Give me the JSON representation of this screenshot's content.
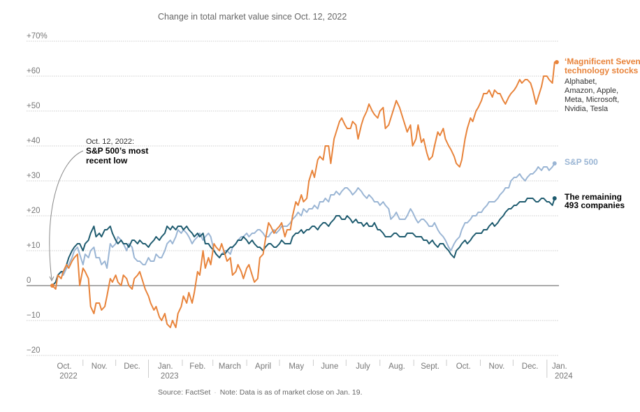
{
  "chart_data": {
    "type": "line",
    "title": "Change in total market value since Oct. 12, 2022",
    "xlabel": "",
    "ylabel": "",
    "ylim": [
      -20,
      70
    ],
    "yticks": [
      {
        "value": 70,
        "label": "+70%"
      },
      {
        "value": 60,
        "label": "+60"
      },
      {
        "value": 50,
        "label": "+50"
      },
      {
        "value": 40,
        "label": "+40"
      },
      {
        "value": 30,
        "label": "+30"
      },
      {
        "value": 20,
        "label": "+20"
      },
      {
        "value": 10,
        "label": "+10"
      },
      {
        "value": 0,
        "label": "0"
      },
      {
        "value": -10,
        "label": "−10"
      },
      {
        "value": -20,
        "label": "−20"
      }
    ],
    "grid": true,
    "x_unit": "days since Oct. 12, 2022",
    "xlim": [
      0,
      464
    ],
    "xticks": [
      {
        "day": 0,
        "label": "Oct.",
        "year": "2022"
      },
      {
        "day": 28,
        "label": "Nov.",
        "year": ""
      },
      {
        "day": 58,
        "label": "Dec.",
        "year": ""
      },
      {
        "day": 88,
        "label": "Jan.",
        "year": "2023"
      },
      {
        "day": 119,
        "label": "Feb.",
        "year": ""
      },
      {
        "day": 147,
        "label": "March",
        "year": ""
      },
      {
        "day": 178,
        "label": "April",
        "year": ""
      },
      {
        "day": 208,
        "label": "May",
        "year": ""
      },
      {
        "day": 239,
        "label": "June",
        "year": ""
      },
      {
        "day": 269,
        "label": "July",
        "year": ""
      },
      {
        "day": 300,
        "label": "Aug.",
        "year": ""
      },
      {
        "day": 331,
        "label": "Sept.",
        "year": ""
      },
      {
        "day": 361,
        "label": "Oct.",
        "year": ""
      },
      {
        "day": 392,
        "label": "Nov.",
        "year": ""
      },
      {
        "day": 422,
        "label": "Dec.",
        "year": ""
      },
      {
        "day": 453,
        "label": "Jan.",
        "year": "2024"
      }
    ],
    "x": [
      0,
      3,
      5,
      8,
      10,
      13,
      15,
      18,
      20,
      23,
      25,
      28,
      30,
      33,
      35,
      38,
      40,
      43,
      45,
      48,
      50,
      53,
      55,
      58,
      60,
      63,
      65,
      68,
      70,
      73,
      75,
      78,
      80,
      83,
      85,
      88,
      90,
      93,
      95,
      98,
      100,
      103,
      105,
      108,
      110,
      113,
      115,
      118,
      120,
      123,
      125,
      128,
      130,
      133,
      135,
      138,
      140,
      143,
      145,
      148,
      150,
      153,
      155,
      158,
      160,
      163,
      165,
      168,
      170,
      173,
      175,
      178,
      180,
      183,
      185,
      188,
      190,
      193,
      195,
      198,
      200,
      203,
      205,
      208,
      210,
      213,
      215,
      218,
      220,
      223,
      225,
      228,
      230,
      233,
      235,
      238,
      240,
      243,
      245,
      248,
      250,
      253,
      255,
      258,
      260,
      263,
      265,
      268,
      270,
      273,
      275,
      278,
      280,
      283,
      285,
      288,
      290,
      293,
      295,
      298,
      300,
      303,
      305,
      308,
      310,
      313,
      315,
      318,
      320,
      323,
      325,
      328,
      330,
      333,
      335,
      338,
      340,
      343,
      345,
      348,
      350,
      353,
      355,
      358,
      360,
      363,
      365,
      368,
      370,
      373,
      375,
      378,
      380,
      383,
      385,
      388,
      390,
      393,
      395,
      398,
      400,
      403,
      405,
      408,
      410,
      413,
      415,
      418,
      420,
      423,
      425,
      428,
      430,
      433,
      435,
      438,
      440,
      443,
      445,
      448,
      450,
      453,
      455,
      458,
      460,
      462,
      464
    ],
    "series": [
      {
        "name": "‘Magnificent Seven’ technology stocks",
        "color": "#e8833a",
        "values": [
          0,
          -1,
          3,
          2,
          4,
          6,
          5,
          7,
          8,
          9,
          0,
          5,
          4,
          2,
          -6,
          -8,
          -5,
          -5,
          -7,
          -6,
          -3,
          2,
          1,
          3,
          1,
          0,
          3,
          2,
          0,
          -1,
          2,
          3,
          4,
          1,
          -1,
          -3,
          -5,
          -7,
          -6,
          -9,
          -10,
          -8,
          -11,
          -12,
          -10,
          -12,
          -8,
          -6,
          -3,
          -5,
          -2,
          -5,
          -2,
          4,
          3,
          10,
          5,
          8,
          6,
          12,
          11,
          10,
          12,
          9,
          7,
          8,
          3,
          4,
          6,
          4,
          2,
          5,
          6,
          3,
          1,
          2,
          8,
          9,
          13,
          18,
          17,
          15,
          16,
          17,
          18,
          14,
          16,
          16,
          20,
          24,
          23,
          26,
          24,
          25,
          30,
          33,
          31,
          36,
          37,
          36,
          40,
          40,
          35,
          42,
          44,
          47,
          48,
          46,
          45,
          45,
          47,
          46,
          42,
          46,
          48,
          50,
          52,
          50,
          49,
          48,
          50,
          51,
          45,
          46,
          48,
          51,
          53,
          51,
          49,
          46,
          44,
          46,
          40,
          42,
          46,
          41,
          42,
          38,
          36,
          37,
          40,
          44,
          43,
          45,
          42,
          40,
          39,
          37,
          35,
          34,
          36,
          42,
          45,
          48,
          47,
          50,
          51,
          53,
          55,
          55,
          56,
          54,
          56,
          55,
          55,
          53,
          52,
          54,
          55,
          56,
          57,
          59,
          58,
          59,
          59,
          58,
          56,
          52,
          54,
          57,
          60,
          60,
          59,
          58,
          64,
          64
        ]
      },
      {
        "name": "S&P 500",
        "color": "#9ab5d4",
        "values": [
          0,
          1,
          3,
          4,
          3,
          5,
          6,
          8,
          10,
          11,
          9,
          6,
          9,
          8,
          10,
          11,
          8,
          8,
          6,
          7,
          5,
          12,
          11,
          12,
          14,
          13,
          12,
          10,
          12,
          11,
          8,
          7,
          7,
          6,
          6,
          8,
          7,
          7,
          9,
          8,
          8,
          10,
          12,
          13,
          12,
          14,
          16,
          15,
          16,
          15,
          14,
          12,
          13,
          14,
          15,
          13,
          14,
          15,
          14,
          10,
          9,
          8,
          9,
          10,
          10,
          9,
          11,
          12,
          13,
          14,
          14,
          15,
          14,
          15,
          15,
          16,
          16,
          15,
          14,
          14,
          15,
          16,
          15,
          16,
          17,
          17,
          17,
          18,
          19,
          20,
          21,
          20,
          22,
          21,
          22,
          22,
          23,
          22,
          24,
          24,
          25,
          24,
          26,
          26,
          27,
          26,
          27,
          28,
          28,
          27,
          26,
          27,
          28,
          27,
          26,
          25,
          26,
          25,
          24,
          24,
          23,
          24,
          23,
          22,
          19,
          20,
          21,
          19,
          19,
          19,
          20,
          22,
          21,
          19,
          18,
          19,
          19,
          18,
          17,
          17,
          18,
          16,
          15,
          14,
          13,
          11,
          10,
          12,
          13,
          14,
          16,
          18,
          18,
          19,
          20,
          20,
          21,
          21,
          22,
          23,
          24,
          24,
          24,
          25,
          26,
          27,
          28,
          28,
          30,
          31,
          31,
          32,
          31,
          30,
          31,
          32,
          32,
          33,
          34,
          33,
          34,
          34,
          33,
          34,
          35
        ]
      },
      {
        "name": "The remaining 493 companies",
        "color": "#1d5a6e",
        "values": [
          0,
          1,
          3,
          4,
          4,
          6,
          8,
          10,
          11,
          12,
          12,
          10,
          12,
          13,
          15,
          17,
          14,
          15,
          14,
          16,
          16,
          17,
          15,
          13,
          12,
          13,
          12,
          12,
          11,
          13,
          13,
          12,
          13,
          12,
          12,
          11,
          12,
          13,
          14,
          13,
          14,
          15,
          17,
          16,
          17,
          16,
          17,
          17,
          16,
          17,
          16,
          15,
          14,
          15,
          14,
          15,
          12,
          12,
          11,
          10,
          9,
          8,
          9,
          9,
          10,
          11,
          11,
          12,
          13,
          13,
          14,
          13,
          12,
          13,
          12,
          11,
          11,
          10,
          11,
          12,
          12,
          11,
          11,
          12,
          13,
          12,
          12,
          12,
          14,
          15,
          15,
          16,
          15,
          16,
          16,
          17,
          17,
          16,
          17,
          18,
          18,
          17,
          18,
          19,
          20,
          20,
          19,
          19,
          20,
          19,
          18,
          19,
          18,
          18,
          17,
          18,
          17,
          17,
          18,
          16,
          16,
          15,
          14,
          14,
          14,
          15,
          15,
          14,
          14,
          14,
          15,
          15,
          15,
          14,
          14,
          14,
          13,
          13,
          12,
          13,
          12,
          11,
          12,
          12,
          11,
          10,
          9,
          8,
          10,
          11,
          12,
          13,
          12,
          13,
          14,
          15,
          15,
          15,
          16,
          16,
          17,
          18,
          17,
          18,
          19,
          20,
          21,
          22,
          22,
          23,
          23,
          24,
          24,
          24,
          25,
          25,
          25,
          24,
          24,
          25,
          25,
          24,
          24,
          23,
          25
        ]
      }
    ],
    "end_labels": [
      {
        "title": "‘Magnificent Seven’",
        "title2": "technology stocks",
        "sub": [
          "Alphabet,",
          "Amazon, Apple,",
          "Meta, Microsoft,",
          "Nvidia, Tesla"
        ]
      },
      {
        "title": "S&P 500"
      },
      {
        "title": "The remaining",
        "title2": "493 companies"
      }
    ],
    "annotation": {
      "date_line": "Oct. 12, 2022:",
      "text_line1": "S&P 500’s most",
      "text_line2": "recent low"
    },
    "legend": "inline-right"
  },
  "footer": {
    "source": "Source: FactSet",
    "note": "Note: Data is as of market close on Jan. 19."
  }
}
